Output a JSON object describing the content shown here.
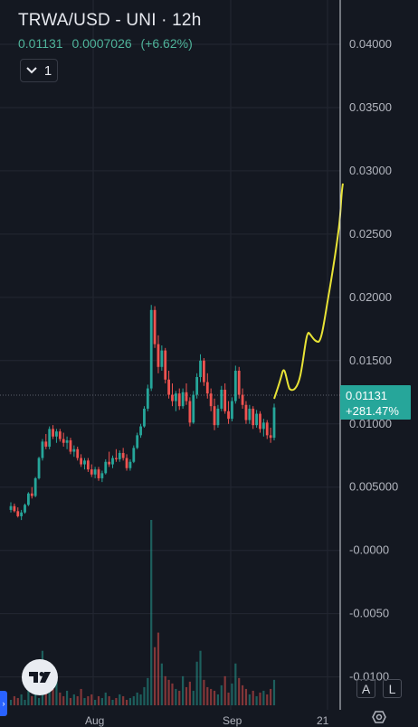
{
  "header": {
    "title": "TRWA/USD - UNI · 12h",
    "last_price": "0.01131",
    "change": "0.0007026",
    "change_pct": "(+6.62%)",
    "indicator_count": "1"
  },
  "price_tag": {
    "price": "0.01131",
    "change": "+281.47%"
  },
  "buttons": {
    "auto_label": "A",
    "log_label": "L"
  },
  "colors": {
    "background": "#141821",
    "up": "#26a69a",
    "down": "#ef5350",
    "drawing": "#e8e336",
    "text": "#b2b5be"
  },
  "icons": [
    "chevron-down-icon",
    "tradingview-logo-icon",
    "settings-icon",
    "chevron-right-icon"
  ],
  "chart_data": {
    "type": "candlestick",
    "title": "TRWA/USD - UNI · 12h",
    "x_ticks": [
      "Aug",
      "Sep",
      "21"
    ],
    "y_ticks": [
      "0.04000",
      "0.03500",
      "0.03000",
      "0.02500",
      "0.02000",
      "0.01500",
      "0.01000",
      "0.005000",
      "-0.0000",
      "-0.0050",
      "-0.0100"
    ],
    "ylim": [
      -0.0126,
      0.0435
    ],
    "last_price": 0.01131,
    "candles": [
      [
        0.0032,
        0.0038,
        0.003,
        0.0035
      ],
      [
        0.0035,
        0.0037,
        0.003,
        0.0031
      ],
      [
        0.0031,
        0.0034,
        0.0026,
        0.0027
      ],
      [
        0.0027,
        0.0032,
        0.0024,
        0.003
      ],
      [
        0.003,
        0.0037,
        0.0029,
        0.0036
      ],
      [
        0.0036,
        0.0046,
        0.0035,
        0.0045
      ],
      [
        0.0045,
        0.005,
        0.0041,
        0.0043
      ],
      [
        0.0043,
        0.0058,
        0.0042,
        0.0057
      ],
      [
        0.0057,
        0.0074,
        0.0056,
        0.0073
      ],
      [
        0.0073,
        0.0088,
        0.0071,
        0.0086
      ],
      [
        0.0086,
        0.0092,
        0.008,
        0.0082
      ],
      [
        0.0082,
        0.0098,
        0.008,
        0.0096
      ],
      [
        0.0096,
        0.0099,
        0.0088,
        0.009
      ],
      [
        0.009,
        0.0096,
        0.0085,
        0.0094
      ],
      [
        0.0094,
        0.0096,
        0.0086,
        0.0088
      ],
      [
        0.0088,
        0.0093,
        0.0082,
        0.0085
      ],
      [
        0.0085,
        0.009,
        0.008,
        0.0087
      ],
      [
        0.0087,
        0.0089,
        0.0076,
        0.0078
      ],
      [
        0.0078,
        0.0083,
        0.0074,
        0.008
      ],
      [
        0.008,
        0.0082,
        0.0071,
        0.0073
      ],
      [
        0.0073,
        0.0076,
        0.0066,
        0.0068
      ],
      [
        0.0068,
        0.0073,
        0.0064,
        0.0071
      ],
      [
        0.0071,
        0.0073,
        0.0062,
        0.0064
      ],
      [
        0.0064,
        0.0068,
        0.0058,
        0.006
      ],
      [
        0.006,
        0.0066,
        0.0057,
        0.0064
      ],
      [
        0.0064,
        0.0066,
        0.0055,
        0.0057
      ],
      [
        0.0057,
        0.0063,
        0.0054,
        0.0061
      ],
      [
        0.0061,
        0.0072,
        0.006,
        0.007
      ],
      [
        0.007,
        0.0078,
        0.0066,
        0.0068
      ],
      [
        0.0068,
        0.0075,
        0.0065,
        0.0073
      ],
      [
        0.0073,
        0.008,
        0.007,
        0.0072
      ],
      [
        0.0072,
        0.0079,
        0.007,
        0.0077
      ],
      [
        0.0077,
        0.0081,
        0.0071,
        0.0073
      ],
      [
        0.0073,
        0.0076,
        0.0063,
        0.0065
      ],
      [
        0.0065,
        0.0072,
        0.0063,
        0.007
      ],
      [
        0.007,
        0.0083,
        0.0069,
        0.0081
      ],
      [
        0.0081,
        0.0093,
        0.008,
        0.0091
      ],
      [
        0.0091,
        0.01,
        0.0089,
        0.0098
      ],
      [
        0.0098,
        0.0114,
        0.0097,
        0.0112
      ],
      [
        0.0112,
        0.0131,
        0.011,
        0.0128
      ],
      [
        0.0128,
        0.0194,
        0.0126,
        0.019
      ],
      [
        0.019,
        0.0193,
        0.016,
        0.0163
      ],
      [
        0.0163,
        0.017,
        0.014,
        0.0145
      ],
      [
        0.0145,
        0.0162,
        0.0142,
        0.0158
      ],
      [
        0.0158,
        0.016,
        0.0132,
        0.0135
      ],
      [
        0.0135,
        0.0142,
        0.012,
        0.0123
      ],
      [
        0.0123,
        0.0132,
        0.0114,
        0.0118
      ],
      [
        0.0118,
        0.0126,
        0.011,
        0.0124
      ],
      [
        0.0124,
        0.0128,
        0.0111,
        0.0114
      ],
      [
        0.0114,
        0.0128,
        0.0112,
        0.0125
      ],
      [
        0.0125,
        0.0132,
        0.0115,
        0.0118
      ],
      [
        0.0118,
        0.0121,
        0.0098,
        0.0101
      ],
      [
        0.0101,
        0.0126,
        0.01,
        0.0123
      ],
      [
        0.0123,
        0.014,
        0.012,
        0.0137
      ],
      [
        0.0137,
        0.0155,
        0.0133,
        0.015
      ],
      [
        0.015,
        0.0152,
        0.013,
        0.0133
      ],
      [
        0.0133,
        0.014,
        0.012,
        0.0124
      ],
      [
        0.0124,
        0.0128,
        0.011,
        0.0114
      ],
      [
        0.0114,
        0.012,
        0.0095,
        0.0099
      ],
      [
        0.0099,
        0.0115,
        0.0097,
        0.0112
      ],
      [
        0.0112,
        0.013,
        0.011,
        0.0127
      ],
      [
        0.0127,
        0.0132,
        0.0108,
        0.011
      ],
      [
        0.011,
        0.0118,
        0.01,
        0.0104
      ],
      [
        0.0104,
        0.0121,
        0.0102,
        0.0118
      ],
      [
        0.0118,
        0.0146,
        0.0116,
        0.0142
      ],
      [
        0.0142,
        0.0145,
        0.012,
        0.0123
      ],
      [
        0.0123,
        0.0128,
        0.0112,
        0.0115
      ],
      [
        0.0115,
        0.0118,
        0.01,
        0.0103
      ],
      [
        0.0103,
        0.0115,
        0.01,
        0.0112
      ],
      [
        0.0112,
        0.0114,
        0.0096,
        0.0099
      ],
      [
        0.0099,
        0.0111,
        0.0097,
        0.0108
      ],
      [
        0.0108,
        0.011,
        0.0093,
        0.0096
      ],
      [
        0.0096,
        0.0104,
        0.009,
        0.0101
      ],
      [
        0.0101,
        0.0103,
        0.0088,
        0.0091
      ],
      [
        0.0091,
        0.0097,
        0.0085,
        0.0089
      ],
      [
        0.0089,
        0.0116,
        0.0087,
        0.0113
      ]
    ],
    "volume": [
      0.3,
      0.5,
      0.4,
      0.6,
      0.3,
      0.8,
      0.5,
      0.6,
      0.4,
      3.0,
      1.2,
      2.1,
      0.9,
      1.6,
      0.7,
      0.5,
      0.8,
      0.4,
      0.6,
      0.5,
      0.9,
      0.4,
      0.5,
      0.6,
      0.3,
      0.5,
      0.4,
      0.7,
      0.5,
      0.3,
      0.4,
      0.6,
      0.5,
      0.3,
      0.4,
      0.5,
      0.7,
      0.6,
      1.0,
      1.5,
      10.2,
      3.2,
      4.0,
      2.3,
      1.6,
      1.4,
      1.2,
      0.9,
      0.8,
      1.6,
      1.0,
      1.3,
      0.8,
      2.4,
      3.0,
      1.4,
      1.0,
      0.9,
      0.8,
      0.6,
      1.1,
      1.6,
      0.7,
      1.2,
      2.3,
      1.5,
      1.1,
      0.9,
      0.6,
      0.8,
      0.5,
      0.7,
      0.8,
      0.6,
      0.9,
      1.4
    ]
  }
}
